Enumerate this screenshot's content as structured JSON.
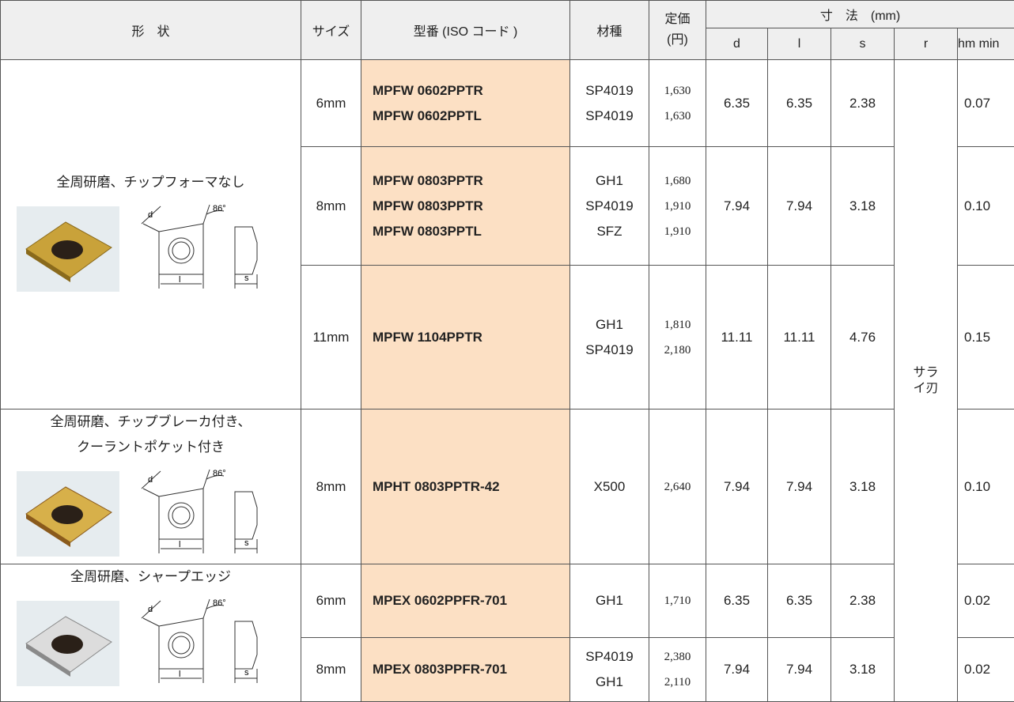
{
  "header": {
    "shape": "形　状",
    "size": "サイズ",
    "model": "型番 (ISO コード )",
    "grade": "材種",
    "price": [
      "定価",
      "(円)"
    ],
    "dimensions": "寸　法　(mm)",
    "d": "d",
    "l": "l",
    "s": "s",
    "r": "r",
    "hm": "hm min"
  },
  "r_value": "サライ刃",
  "groups": [
    {
      "shape": [
        "全周研磨、チップフォーマなし"
      ],
      "diagram": [
        "d",
        "86°",
        "l",
        "s"
      ],
      "rows": [
        {
          "size": "6mm",
          "models": [
            "MPFW 0602PPTR",
            "MPFW 0602PPTL"
          ],
          "grades": [
            "SP4019",
            "SP4019"
          ],
          "prices": [
            "1,630",
            "1,630"
          ],
          "d": "6.35",
          "l": "6.35",
          "s": "2.38",
          "hm": "0.07"
        },
        {
          "size": "8mm",
          "models": [
            "MPFW 0803PPTR",
            "MPFW 0803PPTR",
            "MPFW 0803PPTL"
          ],
          "grades": [
            "GH1",
            "SP4019",
            "SFZ"
          ],
          "prices": [
            "1,680",
            "1,910",
            "1,910"
          ],
          "d": "7.94",
          "l": "7.94",
          "s": "3.18",
          "hm": "0.10"
        },
        {
          "size": "11mm",
          "models": [
            "MPFW 1104PPTR"
          ],
          "grades": [
            "GH1",
            "SP4019"
          ],
          "prices": [
            "1,810",
            "2,180"
          ],
          "d": "11.11",
          "l": "11.11",
          "s": "4.76",
          "hm": "0.15"
        }
      ]
    },
    {
      "shape": [
        "全周研磨、チップブレーカ付き、",
        "クーラントポケット付き"
      ],
      "diagram": [
        "d",
        "86°",
        "l",
        "s"
      ],
      "rows": [
        {
          "size": "8mm",
          "models": [
            "MPHT 0803PPTR-42"
          ],
          "grades": [
            "X500"
          ],
          "prices": [
            "2,640"
          ],
          "d": "7.94",
          "l": "7.94",
          "s": "3.18",
          "hm": "0.10"
        }
      ]
    },
    {
      "shape": [
        "全周研磨、シャープエッジ"
      ],
      "diagram": [
        "d",
        "86°",
        "l",
        "s"
      ],
      "rows": [
        {
          "size": "6mm",
          "models": [
            "MPEX 0602PPFR-701"
          ],
          "grades": [
            "GH1"
          ],
          "prices": [
            "1,710"
          ],
          "d": "6.35",
          "l": "6.35",
          "s": "2.38",
          "hm": "0.02"
        },
        {
          "size": "8mm",
          "models": [
            "MPEX 0803PPFR-701"
          ],
          "grades": [
            "SP4019",
            "GH1"
          ],
          "prices": [
            "2,380",
            "2,110"
          ],
          "d": "7.94",
          "l": "7.94",
          "s": "3.18",
          "hm": "0.02"
        }
      ]
    }
  ]
}
